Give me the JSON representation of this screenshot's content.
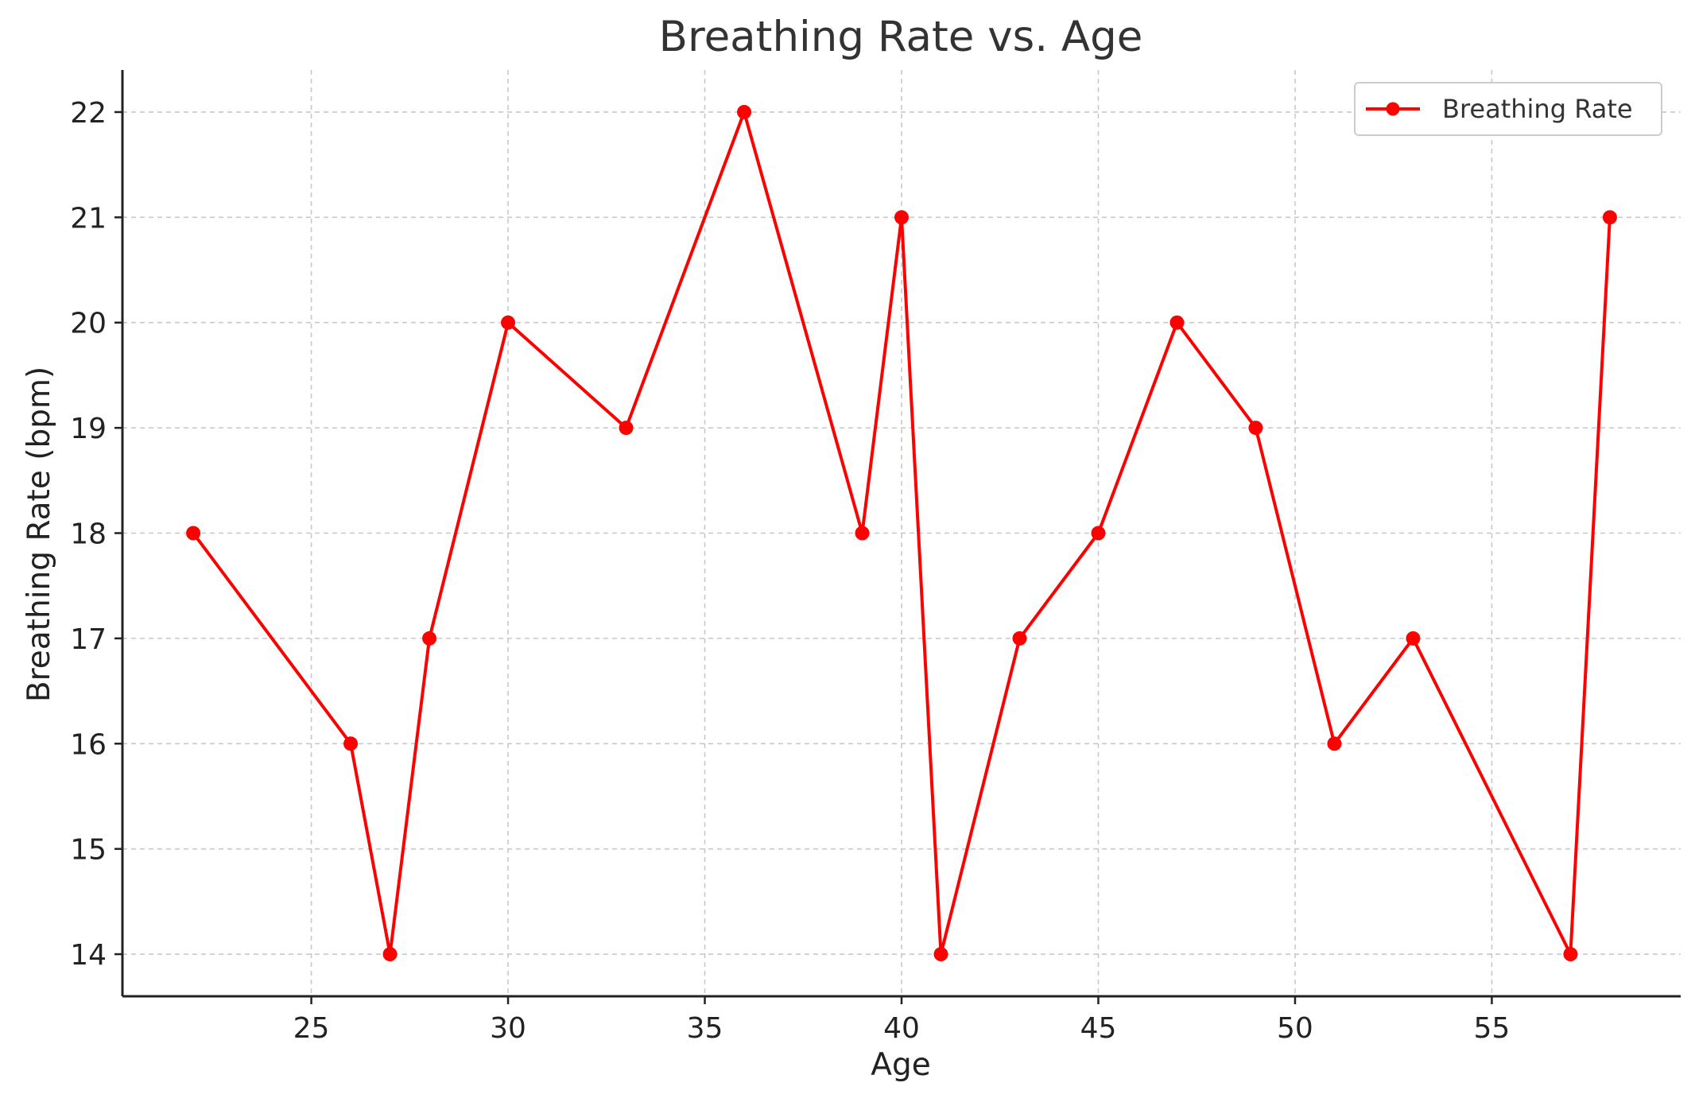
{
  "chart_data": {
    "type": "line",
    "title": "Breathing Rate vs. Age",
    "xlabel": "Age",
    "ylabel": "Breathing Rate (bpm)",
    "xlim": [
      20.2,
      59.8
    ],
    "ylim": [
      13.6,
      22.4
    ],
    "xticks": [
      25,
      30,
      35,
      40,
      45,
      50,
      55
    ],
    "yticks": [
      14,
      15,
      16,
      17,
      18,
      19,
      20,
      21,
      22
    ],
    "grid": true,
    "legend_position": "top-right",
    "series": [
      {
        "name": "Breathing Rate",
        "color": "#ff0000",
        "marker": "circle",
        "x": [
          22,
          26,
          27,
          28,
          30,
          33,
          36,
          39,
          40,
          41,
          43,
          45,
          47,
          49,
          51,
          53,
          57,
          58
        ],
        "y": [
          18,
          16,
          14,
          17,
          20,
          19,
          22,
          18,
          21,
          14,
          17,
          18,
          20,
          19,
          16,
          17,
          14,
          21
        ]
      }
    ]
  }
}
